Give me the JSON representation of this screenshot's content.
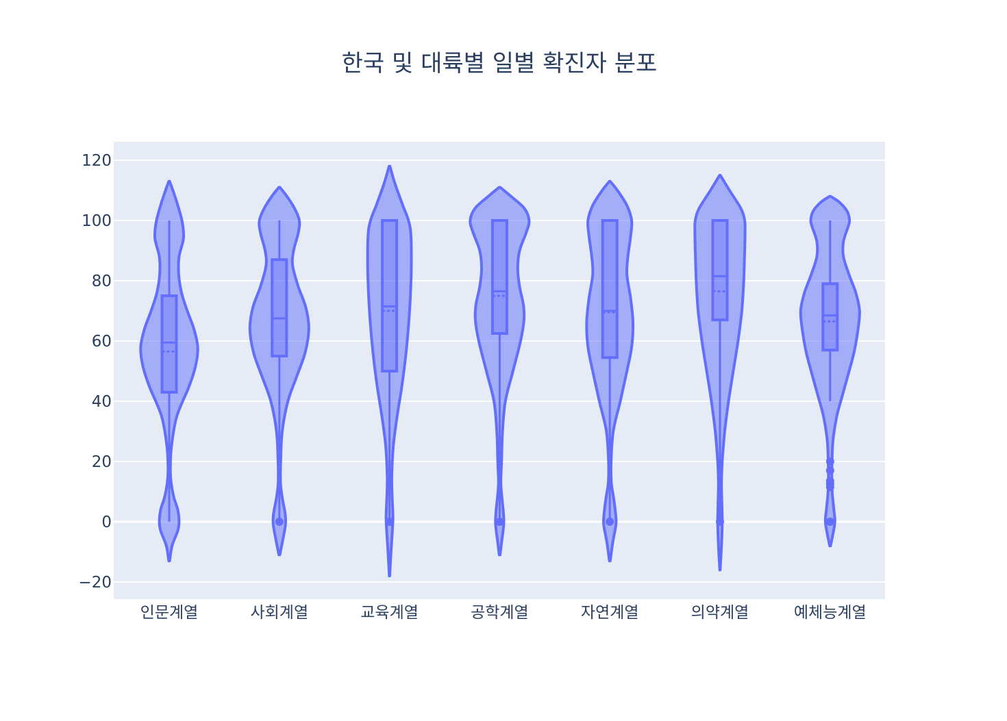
{
  "chart_data": {
    "type": "violin",
    "title": "한국 및 대륙별 일별 확진자 분포",
    "xlabel": "",
    "ylabel": "",
    "ylim": [
      -26,
      125
    ],
    "yticks": [
      -20,
      0,
      20,
      40,
      60,
      80,
      100,
      120
    ],
    "ytick_labels": [
      "−20",
      "0",
      "20",
      "40",
      "60",
      "80",
      "100",
      "120"
    ],
    "grid": true,
    "legend": "none",
    "colors": {
      "violin_line": "#636efa",
      "violin_fill": "rgba(99,110,250,0.5)",
      "plot_bg": "#e5ecf6",
      "grid": "#ffffff",
      "text": "#2a3f5f"
    },
    "categories": [
      "인문계열",
      "사회계열",
      "교육계열",
      "공학계열",
      "자연계열",
      "의약계열",
      "예체능계열"
    ],
    "series": [
      {
        "category": "인문계열",
        "box": {
          "min": 0,
          "q1": 43,
          "median": 59.5,
          "q3": 75,
          "max": 100,
          "mean": 56.5
        },
        "outliers": [],
        "density": [
          [
            -13,
            0.2
          ],
          [
            -8,
            1.5
          ],
          [
            -3,
            4.5
          ],
          [
            0,
            5.2
          ],
          [
            4,
            4.5
          ],
          [
            8,
            2.5
          ],
          [
            13,
            1
          ],
          [
            18,
            0.6
          ],
          [
            25,
            1.2
          ],
          [
            35,
            4
          ],
          [
            45,
            10.5
          ],
          [
            52,
            14
          ],
          [
            58,
            15
          ],
          [
            64,
            13
          ],
          [
            70,
            9.5
          ],
          [
            76,
            6.5
          ],
          [
            82,
            5
          ],
          [
            88,
            5.2
          ],
          [
            94,
            7.5
          ],
          [
            99,
            7
          ],
          [
            104,
            5
          ],
          [
            109,
            2.5
          ],
          [
            113,
            0.2
          ]
        ]
      },
      {
        "category": "사회계열",
        "box": {
          "min": 0,
          "q1": 55,
          "median": 67.5,
          "q3": 87,
          "max": 100,
          "mean": 67.5
        },
        "outliers": [
          0
        ],
        "density": [
          [
            -11,
            0.2
          ],
          [
            -7,
            1.5
          ],
          [
            -2,
            3
          ],
          [
            0,
            3.3
          ],
          [
            3,
            3
          ],
          [
            8,
            1.5
          ],
          [
            13,
            0.6
          ],
          [
            20,
            0.7
          ],
          [
            30,
            1.5
          ],
          [
            40,
            4.5
          ],
          [
            48,
            9
          ],
          [
            56,
            13.5
          ],
          [
            64,
            15.5
          ],
          [
            71,
            14
          ],
          [
            78,
            10
          ],
          [
            85,
            7
          ],
          [
            90,
            7.5
          ],
          [
            96,
            10
          ],
          [
            100,
            10.5
          ],
          [
            104,
            8
          ],
          [
            108,
            4
          ],
          [
            111,
            0.3
          ]
        ]
      },
      {
        "category": "교육계열",
        "box": {
          "min": 0,
          "q1": 50,
          "median": 71.5,
          "q3": 100,
          "max": 100,
          "mean": 70
        },
        "outliers": [
          0
        ],
        "density": [
          [
            -18,
            0.1
          ],
          [
            -10,
            0.8
          ],
          [
            -2,
            1.6
          ],
          [
            2,
            1.8
          ],
          [
            8,
            1.4
          ],
          [
            15,
            1.2
          ],
          [
            25,
            2
          ],
          [
            35,
            4
          ],
          [
            45,
            6.5
          ],
          [
            55,
            8.5
          ],
          [
            65,
            10
          ],
          [
            75,
            11
          ],
          [
            85,
            11.5
          ],
          [
            95,
            11.3
          ],
          [
            100,
            10
          ],
          [
            105,
            7
          ],
          [
            112,
            3
          ],
          [
            118,
            0.2
          ]
        ]
      },
      {
        "category": "공학계열",
        "box": {
          "min": 0,
          "q1": 62.5,
          "median": 76.5,
          "q3": 100,
          "max": 100,
          "mean": 75
        },
        "outliers": [
          0
        ],
        "density": [
          [
            -11,
            0.2
          ],
          [
            -6,
            1.2
          ],
          [
            -2,
            2
          ],
          [
            0,
            2.2
          ],
          [
            3,
            2
          ],
          [
            8,
            1.2
          ],
          [
            13,
            0.6
          ],
          [
            20,
            1
          ],
          [
            30,
            1.5
          ],
          [
            40,
            3
          ],
          [
            50,
            7
          ],
          [
            60,
            11
          ],
          [
            67,
            12.8
          ],
          [
            72,
            12.5
          ],
          [
            78,
            10.5
          ],
          [
            84,
            9.5
          ],
          [
            90,
            10.5
          ],
          [
            96,
            14
          ],
          [
            100,
            15.5
          ],
          [
            104,
            13
          ],
          [
            108,
            6
          ],
          [
            111,
            0.3
          ]
        ]
      },
      {
        "category": "자연계열",
        "box": {
          "min": 0,
          "q1": 54.5,
          "median": 70,
          "q3": 100,
          "max": 100,
          "mean": 69.5
        },
        "outliers": [
          0
        ],
        "density": [
          [
            -13,
            0.2
          ],
          [
            -7,
            1.5
          ],
          [
            -2,
            3
          ],
          [
            0,
            3.3
          ],
          [
            3,
            3
          ],
          [
            8,
            2
          ],
          [
            13,
            0.8
          ],
          [
            20,
            0.7
          ],
          [
            30,
            1.8
          ],
          [
            40,
            5.5
          ],
          [
            50,
            9
          ],
          [
            58,
            11.5
          ],
          [
            66,
            12.2
          ],
          [
            74,
            11
          ],
          [
            82,
            9
          ],
          [
            88,
            9.5
          ],
          [
            95,
            11
          ],
          [
            100,
            11.5
          ],
          [
            105,
            9
          ],
          [
            110,
            4
          ],
          [
            113,
            0.2
          ]
        ]
      },
      {
        "category": "의약계열",
        "box": {
          "min": 0,
          "q1": 67,
          "median": 81.5,
          "q3": 100,
          "max": 100,
          "mean": 76.5
        },
        "outliers": [
          0
        ],
        "density": [
          [
            -16,
            0.1
          ],
          [
            -8,
            0.8
          ],
          [
            0,
            1.2
          ],
          [
            6,
            1
          ],
          [
            13,
            0.8
          ],
          [
            20,
            1.2
          ],
          [
            30,
            2.5
          ],
          [
            40,
            4.5
          ],
          [
            50,
            7
          ],
          [
            60,
            9.5
          ],
          [
            70,
            11.5
          ],
          [
            80,
            12.5
          ],
          [
            90,
            13
          ],
          [
            96,
            13.2
          ],
          [
            100,
            13
          ],
          [
            104,
            11
          ],
          [
            110,
            5
          ],
          [
            115,
            0.2
          ]
        ]
      },
      {
        "category": "예체능계열",
        "box": {
          "min": 40,
          "q1": 57,
          "median": 68.5,
          "q3": 79,
          "max": 100,
          "mean": 66.5
        },
        "outliers": [
          0,
          11.5,
          12.5,
          13.5,
          17,
          20
        ],
        "density": [
          [
            -8,
            0.2
          ],
          [
            -4,
            1.5
          ],
          [
            0,
            2.5
          ],
          [
            4,
            2
          ],
          [
            9,
            1.2
          ],
          [
            14,
            0.9
          ],
          [
            20,
            1
          ],
          [
            27,
            1.5
          ],
          [
            35,
            3.5
          ],
          [
            42,
            6.5
          ],
          [
            50,
            10
          ],
          [
            56,
            12.5
          ],
          [
            63,
            14.5
          ],
          [
            70,
            15.5
          ],
          [
            76,
            13.5
          ],
          [
            82,
            10
          ],
          [
            88,
            7
          ],
          [
            93,
            7
          ],
          [
            98,
            9.5
          ],
          [
            100,
            10.2
          ],
          [
            103,
            9
          ],
          [
            106,
            5
          ],
          [
            108,
            0.3
          ]
        ]
      }
    ]
  }
}
